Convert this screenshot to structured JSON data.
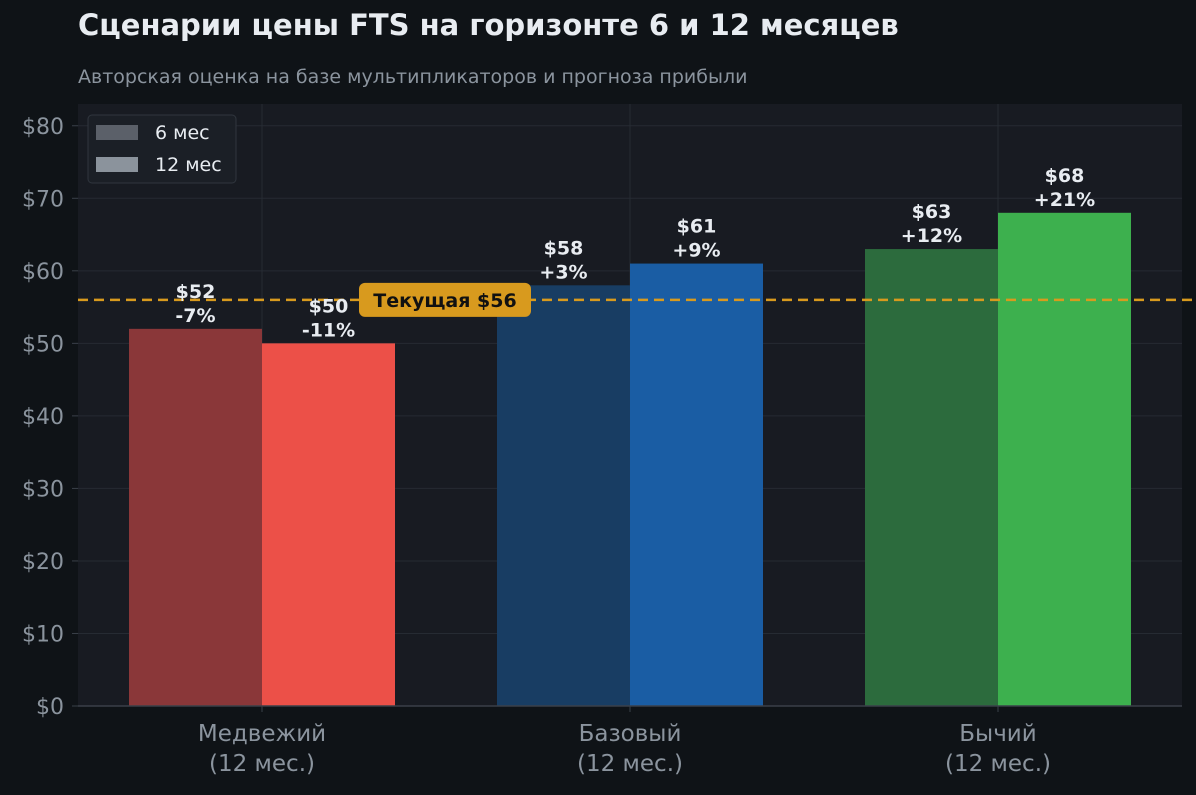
{
  "chart_data": {
    "type": "bar",
    "title": "Сценарии цены FTS на горизонте 6 и 12 месяцев",
    "subtitle": "Авторская оценка на базе мультипликаторов и прогноза прибыли",
    "categories": [
      {
        "line1": "Медвежий",
        "line2": "(12 мес.)"
      },
      {
        "line1": "Базовый",
        "line2": "(12 мес.)"
      },
      {
        "line1": "Бычий",
        "line2": "(12 мес.)"
      }
    ],
    "series": [
      {
        "name": "6 мес",
        "values": [
          52,
          58,
          63
        ],
        "labels": [
          {
            "price": "$52",
            "change": "-7%"
          },
          {
            "price": "$58",
            "change": "+3%"
          },
          {
            "price": "$63",
            "change": "+12%"
          }
        ],
        "colors": [
          "#8a3739",
          "#183d63",
          "#2c6b3d"
        ]
      },
      {
        "name": "12 мес",
        "values": [
          50,
          61,
          68
        ],
        "labels": [
          {
            "price": "$50",
            "change": "-11%"
          },
          {
            "price": "$61",
            "change": "+9%"
          },
          {
            "price": "$68",
            "change": "+21%"
          }
        ],
        "colors": [
          "#ec5048",
          "#1a5da4",
          "#3db04e"
        ]
      }
    ],
    "reference_line": {
      "value": 56,
      "label": "Текущая $56",
      "color": "#d89a1e"
    },
    "y_ticks": [
      {
        "value": 0,
        "label": "$0"
      },
      {
        "value": 10,
        "label": "$10"
      },
      {
        "value": 20,
        "label": "$20"
      },
      {
        "value": 30,
        "label": "$30"
      },
      {
        "value": 40,
        "label": "$40"
      },
      {
        "value": 50,
        "label": "$50"
      },
      {
        "value": 60,
        "label": "$60"
      },
      {
        "value": 70,
        "label": "$70"
      },
      {
        "value": 80,
        "label": "$80"
      }
    ],
    "ylim": [
      0,
      83
    ],
    "legend": {
      "placement": "top-left",
      "items": [
        {
          "name": "6 мес",
          "color": "#5b6069"
        },
        {
          "name": "12 мес",
          "color": "#8b939c"
        }
      ]
    },
    "grid": true
  }
}
